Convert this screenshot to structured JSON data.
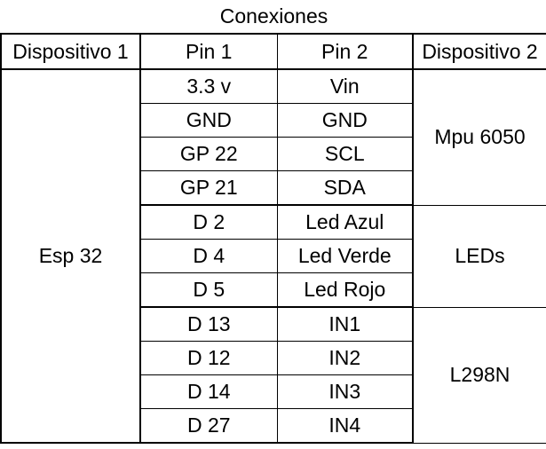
{
  "table": {
    "title": "Conexiones",
    "headers": [
      "Dispositivo 1",
      "Pin 1",
      "Pin 2",
      "Dispositivo 2"
    ],
    "device1": "Esp 32",
    "groups": [
      {
        "device2": "Mpu 6050",
        "rows": [
          {
            "pin1": "3.3 v",
            "pin2": "Vin"
          },
          {
            "pin1": "GND",
            "pin2": "GND"
          },
          {
            "pin1": "GP 22",
            "pin2": "SCL"
          },
          {
            "pin1": "GP 21",
            "pin2": "SDA"
          }
        ]
      },
      {
        "device2": "LEDs",
        "rows": [
          {
            "pin1": "D 2",
            "pin2": "Led Azul"
          },
          {
            "pin1": "D 4",
            "pin2": "Led Verde"
          },
          {
            "pin1": "D 5",
            "pin2": "Led Rojo"
          }
        ]
      },
      {
        "device2": "L298N",
        "rows": [
          {
            "pin1": "D 13",
            "pin2": "IN1"
          },
          {
            "pin1": "D 12",
            "pin2": "IN2"
          },
          {
            "pin1": "D 14",
            "pin2": "IN3"
          },
          {
            "pin1": "D 27",
            "pin2": "IN4"
          }
        ]
      }
    ]
  }
}
